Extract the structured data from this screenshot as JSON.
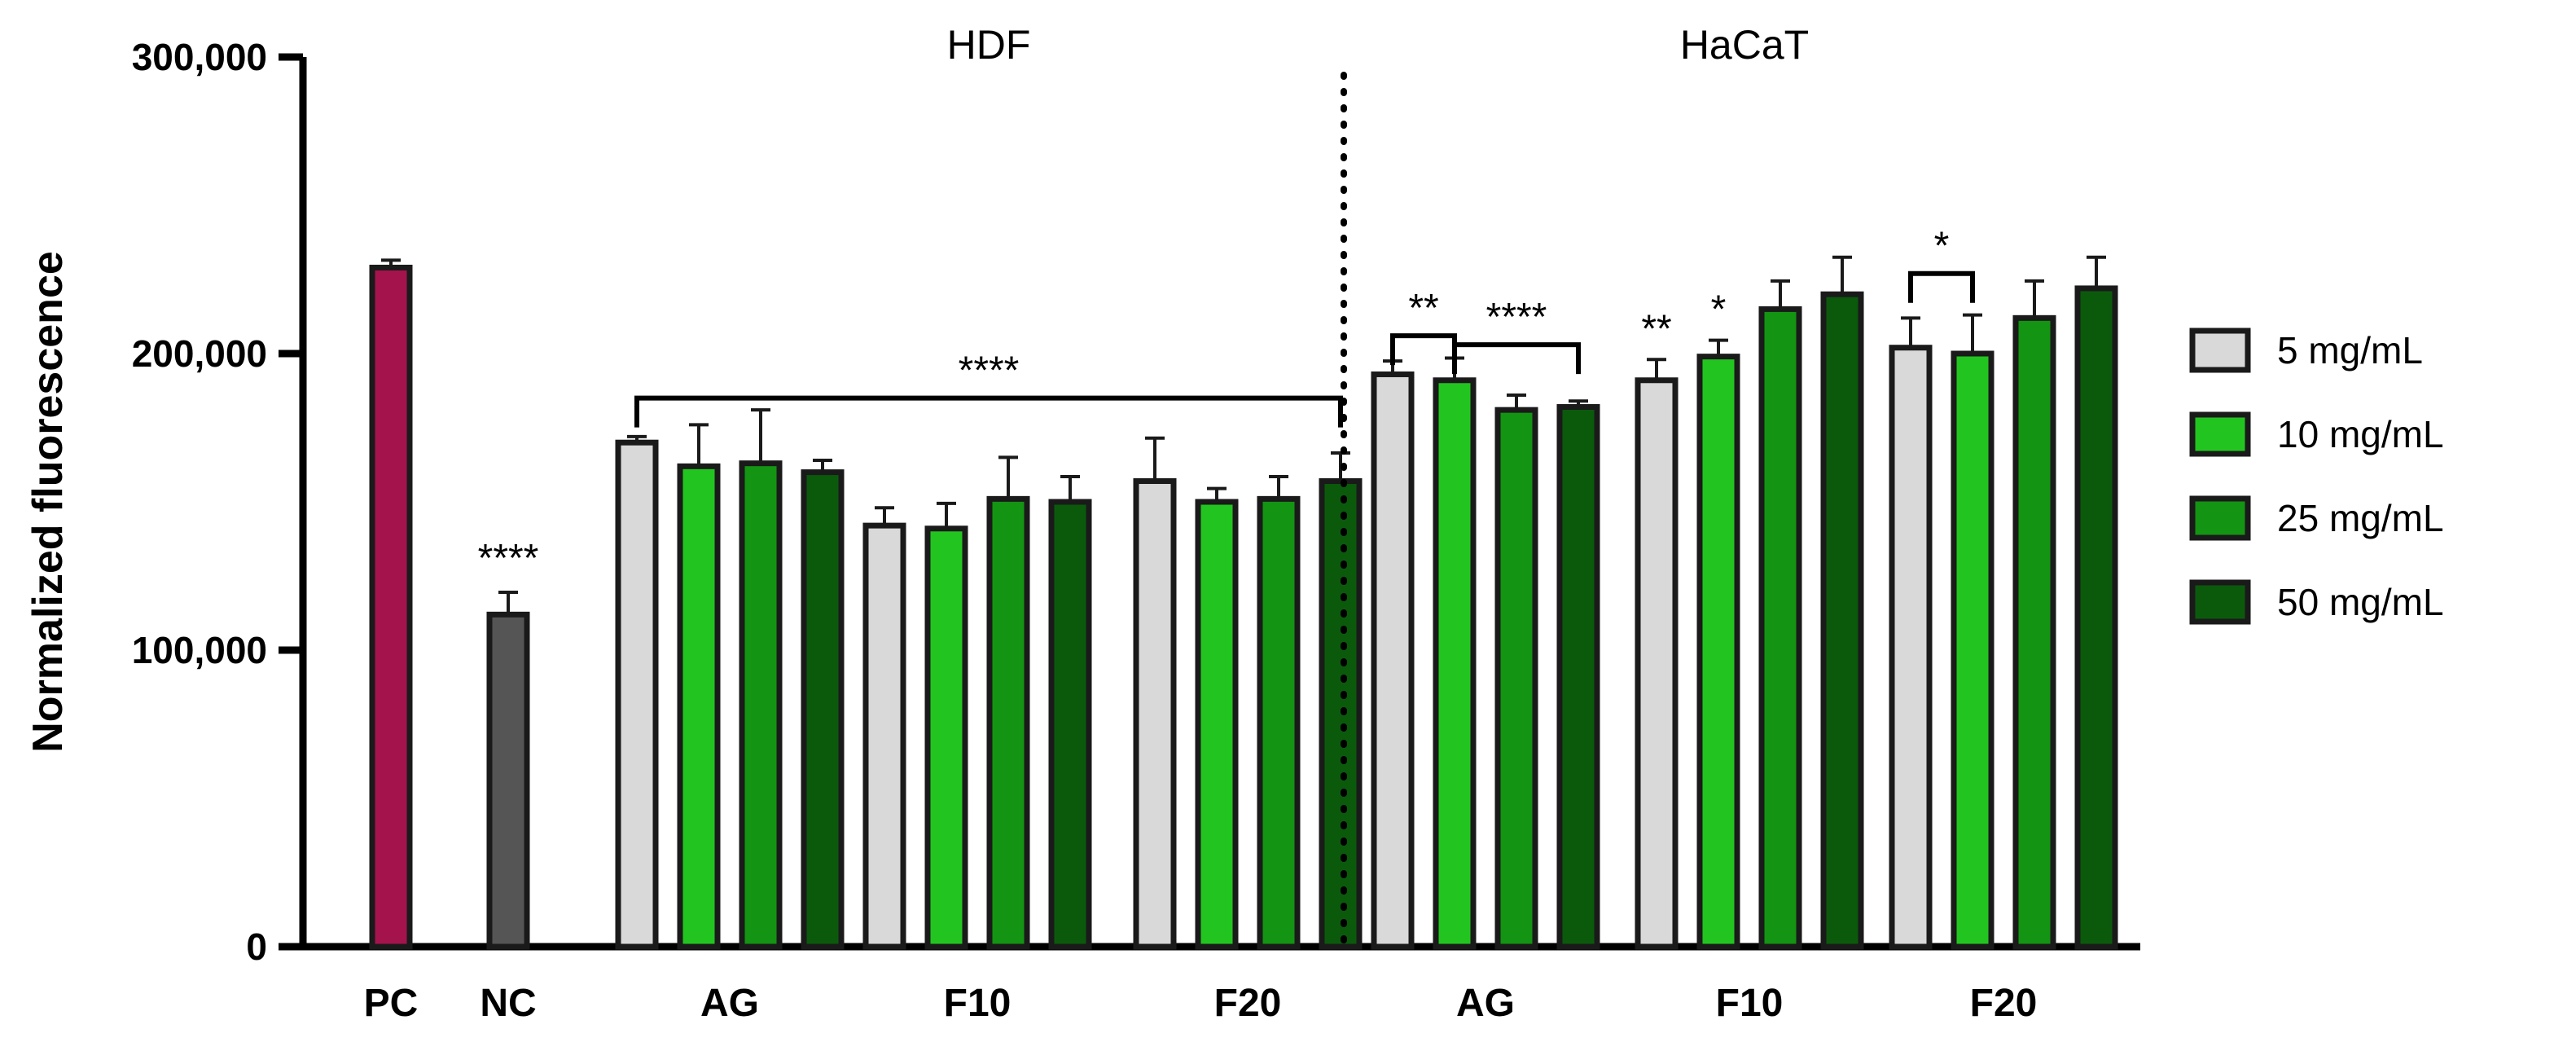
{
  "chart_data": {
    "type": "bar",
    "ylabel": "Normalized fluorescence",
    "ylim": [
      0,
      300000
    ],
    "yticks": [
      0,
      100000,
      200000,
      300000
    ],
    "ytick_labels": [
      "0",
      "100,000",
      "200,000",
      "300,000"
    ],
    "group_titles": [
      "HDF",
      "HaCaT"
    ],
    "legend_title": "",
    "legend_position": "right",
    "series": [
      {
        "name": "5 mg/mL",
        "color": "#d9d9d9"
      },
      {
        "name": "10 mg/mL",
        "color": "#22c51f"
      },
      {
        "name": "25 mg/mL",
        "color": "#139412"
      },
      {
        "name": "50 mg/mL",
        "color": "#0b5a0c"
      }
    ],
    "controls": [
      {
        "label": "PC",
        "value": 229000,
        "error": 2500,
        "color": "#a5134d",
        "sig": ""
      },
      {
        "label": "NC",
        "value": 112000,
        "error": 7500,
        "color": "#555555",
        "sig": "****"
      }
    ],
    "groups": [
      {
        "label": "AG",
        "cell": "HDF",
        "values": [
          170000,
          162000,
          163000,
          160000
        ],
        "errors": [
          2000,
          14000,
          18000,
          4000
        ]
      },
      {
        "label": "F10",
        "cell": "HDF",
        "values": [
          142000,
          141000,
          151000,
          150000
        ],
        "errors": [
          6000,
          8500,
          14000,
          8500
        ]
      },
      {
        "label": "F20",
        "cell": "HDF",
        "values": [
          157000,
          150000,
          151000,
          157000
        ],
        "errors": [
          14500,
          4500,
          7500,
          9500
        ]
      },
      {
        "label": "AG",
        "cell": "HaCaT",
        "values": [
          193000,
          191000,
          181000,
          182000
        ],
        "errors": [
          4500,
          7500,
          5000,
          2000
        ]
      },
      {
        "label": "F10",
        "cell": "HaCaT",
        "values": [
          191000,
          199000,
          215000,
          220000
        ],
        "errors": [
          7000,
          5500,
          9500,
          12500
        ]
      },
      {
        "label": "F20",
        "cell": "HaCaT",
        "values": [
          202000,
          200000,
          212000,
          222000
        ],
        "errors": [
          10000,
          13000,
          12500,
          10500
        ]
      }
    ],
    "significance": [
      {
        "text": "****",
        "type": "bracket",
        "from_group": 0,
        "to_group": 2,
        "level": 185000
      },
      {
        "text": "**",
        "type": "bracket",
        "group": 3,
        "from_bar": 0,
        "to_bar": 1,
        "level": 206000
      },
      {
        "text": "****",
        "type": "bracket",
        "group": 3,
        "from_bar": 1,
        "to_bar": 3,
        "level": 203000
      },
      {
        "text": "**",
        "type": "star",
        "group": 4,
        "bar": 0
      },
      {
        "text": "*",
        "type": "star",
        "group": 4,
        "bar": 1
      },
      {
        "text": "*",
        "type": "bracket",
        "group": 5,
        "from_bar": 0,
        "to_bar": 1,
        "level": 227000
      }
    ]
  }
}
